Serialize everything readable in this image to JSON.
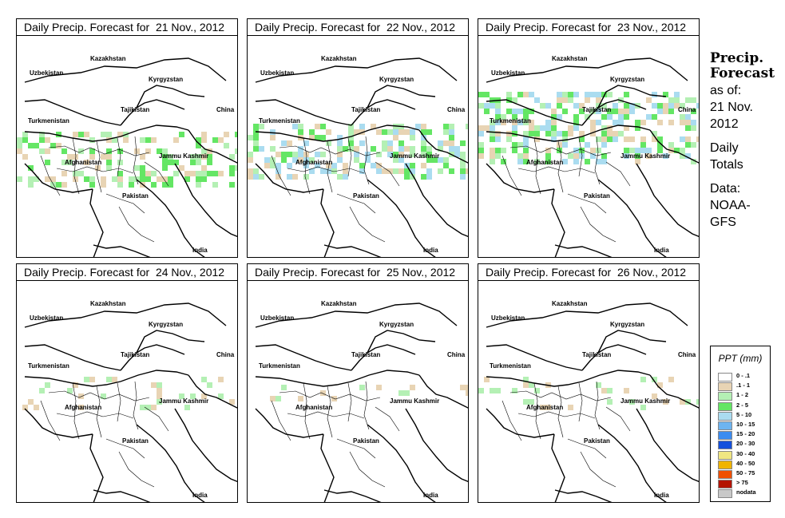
{
  "panels": [
    {
      "title": "Daily Precip. Forecast for  21 Nov., 2012",
      "intensity": 2
    },
    {
      "title": "Daily Precip. Forecast for  22 Nov., 2012",
      "intensity": 3
    },
    {
      "title": "Daily Precip. Forecast for  23 Nov., 2012",
      "intensity": 3
    },
    {
      "title": "Daily Precip. Forecast for  24 Nov., 2012",
      "intensity": 1
    },
    {
      "title": "Daily Precip. Forecast for  25 Nov., 2012",
      "intensity": 1
    },
    {
      "title": "Daily Precip. Forecast for  26 Nov., 2012",
      "intensity": 1
    }
  ],
  "map_labels": {
    "uzbekistan": "Uzbekistan",
    "kazakhstan": "Kazakhstan",
    "kyrgyzstan": "Kyrgyzstan",
    "tajikistan": "Tajikistan",
    "turkmenistan": "Turkmenistan",
    "china": "China",
    "afghanistan": "Afghanistan",
    "jammu_kashmir": "Jammu Kashmir",
    "pakistan": "Pakistan",
    "india": "India"
  },
  "side": {
    "heading": "Precip.\nForecast",
    "as_of": "as of:\n21 Nov.\n2012",
    "totals": "Daily\nTotals",
    "source": "Data:\nNOAA-\nGFS"
  },
  "legend": {
    "title": "PPT (mm)",
    "items": [
      {
        "label": "0 - .1",
        "color": "#ffffff"
      },
      {
        "label": ".1 - 1",
        "color": "#e8d4b4"
      },
      {
        "label": "1 - 2",
        "color": "#b4f0b4"
      },
      {
        "label": "2 - 5",
        "color": "#64e664"
      },
      {
        "label": "5 - 10",
        "color": "#aadcf0"
      },
      {
        "label": "10 - 15",
        "color": "#6eb4f0"
      },
      {
        "label": "15 - 20",
        "color": "#3c8cf0"
      },
      {
        "label": "20 - 30",
        "color": "#1450dc"
      },
      {
        "label": "30 - 40",
        "color": "#f0e682"
      },
      {
        "label": "40 - 50",
        "color": "#f0b400"
      },
      {
        "label": "50 - 75",
        "color": "#f05000"
      },
      {
        "label": "> 75",
        "color": "#b41400"
      },
      {
        "label": "nodata",
        "color": "#c8c8c8"
      }
    ]
  }
}
